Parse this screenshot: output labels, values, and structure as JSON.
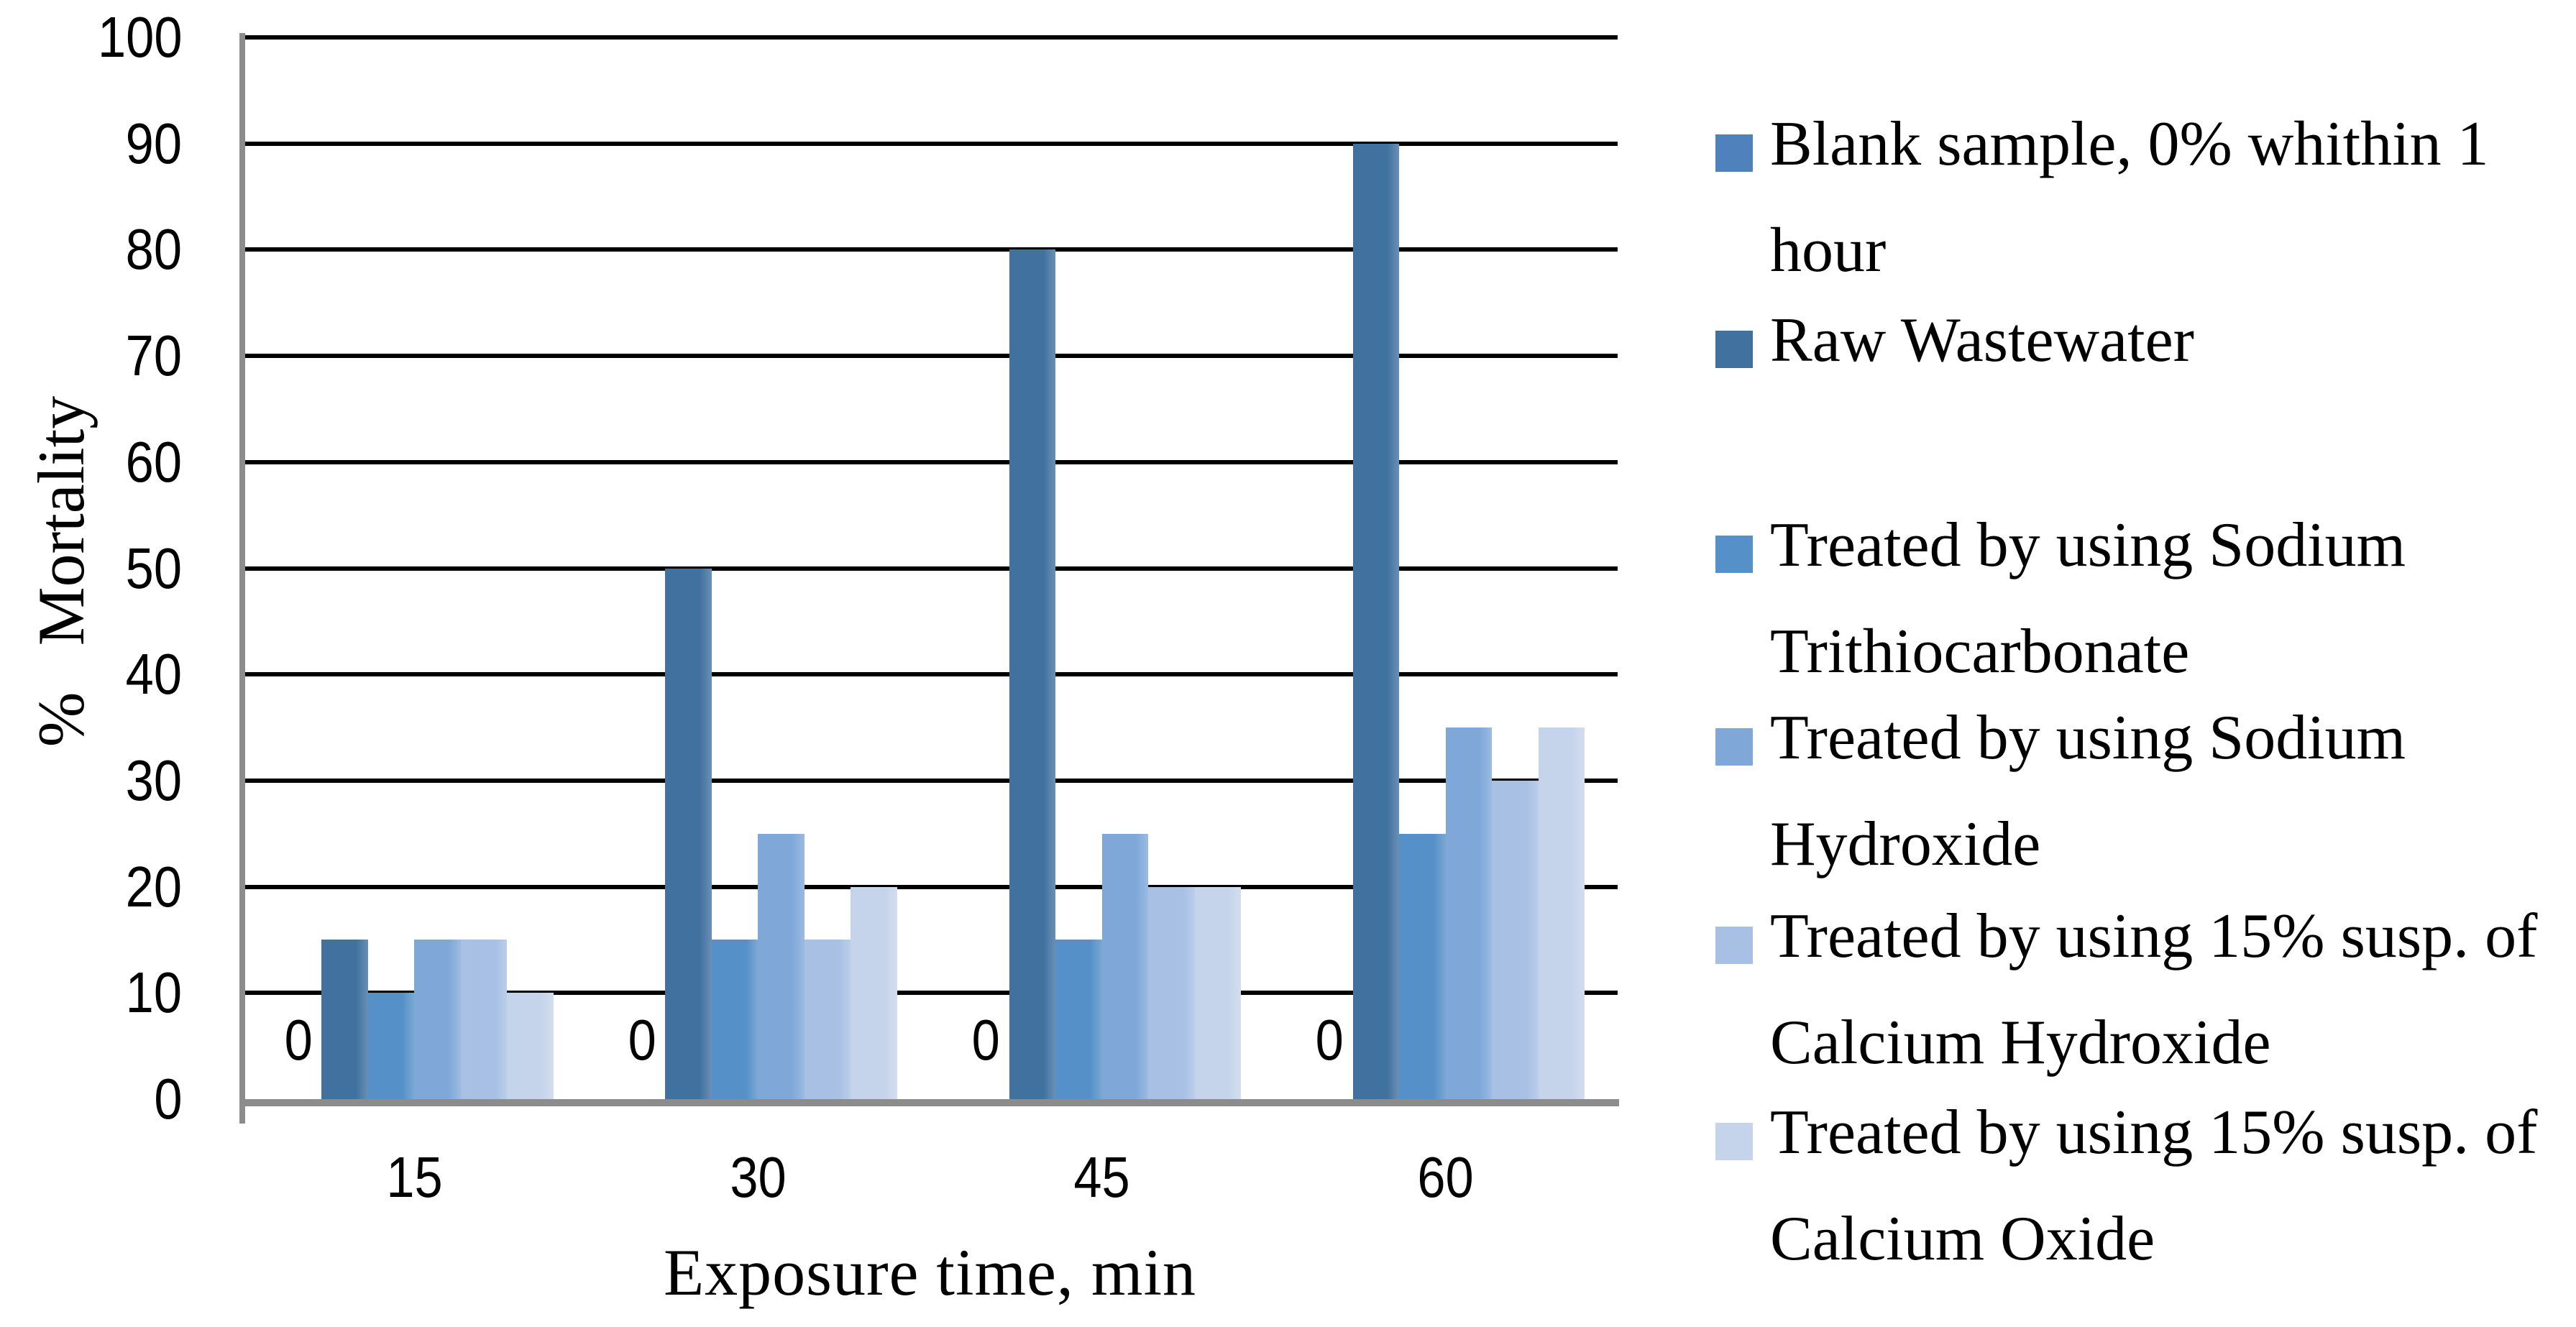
{
  "chart_data": {
    "type": "bar",
    "title": "",
    "xlabel": "Exposure time, min",
    "ylabel": "% Mortality",
    "categories": [
      "15",
      "30",
      "45",
      "60"
    ],
    "yticks": [
      "0",
      "10",
      "20",
      "30",
      "40",
      "50",
      "60",
      "70",
      "80",
      "90",
      "100"
    ],
    "ylim": [
      0,
      100
    ],
    "grid": true,
    "legend_position": "right",
    "series": [
      {
        "name": "Blank sample, 0% whithin 1 hour",
        "legend_lines": [
          "Blank sample, 0% whithin 1",
          "hour"
        ],
        "color": "#4F81BD",
        "values": [
          0,
          0,
          0,
          0
        ],
        "data_labels": [
          "0",
          "0",
          "0",
          "0"
        ]
      },
      {
        "name": "Raw Wastewater",
        "legend_lines": [
          "Raw Wastewater"
        ],
        "color": "#40719F",
        "values": [
          15,
          50,
          80,
          90
        ]
      },
      {
        "name": "Treated by using Sodium Trithiocarbonate",
        "legend_lines": [
          "Treated by using Sodium",
          "Trithiocarbonate"
        ],
        "color": "#5590C8",
        "values": [
          10,
          15,
          15,
          25
        ]
      },
      {
        "name": "Treated by using Sodium Hydroxide",
        "legend_lines": [
          "Treated by using Sodium",
          "Hydroxide"
        ],
        "color": "#7FA8D9",
        "values": [
          15,
          25,
          25,
          35
        ]
      },
      {
        "name": "Treated by using 15% susp. of Calcium Hydroxide",
        "legend_lines": [
          "Treated by using 15% susp. of",
          "Calcium Hydroxide"
        ],
        "color": "#A7C0E4",
        "values": [
          15,
          15,
          20,
          30
        ]
      },
      {
        "name": "Treated by using 15% susp. of Calcium Oxide",
        "legend_lines": [
          "Treated by using 15% susp. of",
          "Calcium Oxide"
        ],
        "color": "#C6D4EB",
        "values": [
          10,
          20,
          20,
          35
        ]
      }
    ],
    "axis_colors": {
      "gridline": "#000000",
      "axis_line": "#8C8C8C",
      "text": "#000000"
    }
  }
}
